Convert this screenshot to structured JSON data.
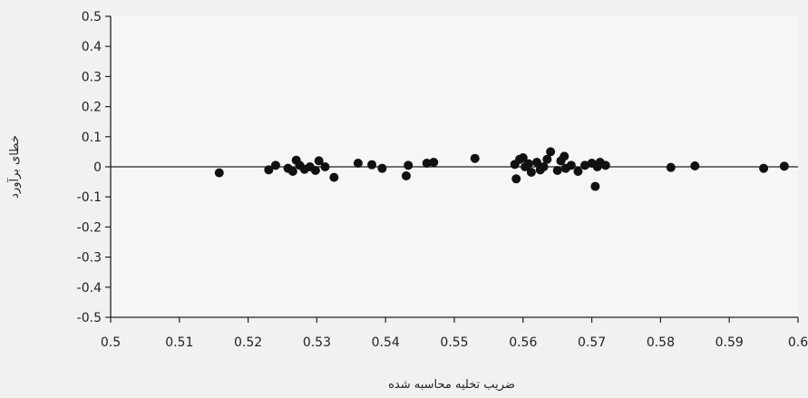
{
  "chart_data": {
    "type": "scatter",
    "title": "",
    "xlabel": "ضریب تخلیه محاسبه شده",
    "ylabel": "خطای برآورد",
    "xlim": [
      0.5,
      0.6
    ],
    "ylim": [
      -0.5,
      0.5
    ],
    "x_ticks": [
      0.5,
      0.51,
      0.52,
      0.53,
      0.54,
      0.55,
      0.56,
      0.57,
      0.58,
      0.59,
      0.6
    ],
    "x_tick_labels": [
      "0.5",
      "0.51",
      "0.52",
      "0.53",
      "0.54",
      "0.55",
      "0.56",
      "0.57",
      "0.58",
      "0.59",
      "0.6"
    ],
    "y_ticks": [
      0.5,
      0.4,
      0.3,
      0.2,
      0.1,
      0,
      -0.1,
      -0.2,
      -0.3,
      -0.4,
      -0.5
    ],
    "y_tick_labels": [
      "0.5",
      "0.4",
      "0.3",
      "0.2",
      "0.1",
      "0",
      "-0.1",
      "-0.2",
      "-0.3",
      "-0.4",
      "-0.5"
    ],
    "zero_line": true,
    "grid": false,
    "marker_color": "#111111",
    "points": [
      {
        "x": 0.5158,
        "y": -0.02
      },
      {
        "x": 0.523,
        "y": -0.01
      },
      {
        "x": 0.524,
        "y": 0.005
      },
      {
        "x": 0.5258,
        "y": -0.005
      },
      {
        "x": 0.5265,
        "y": -0.015
      },
      {
        "x": 0.527,
        "y": 0.022
      },
      {
        "x": 0.5275,
        "y": 0.005
      },
      {
        "x": 0.5282,
        "y": -0.008
      },
      {
        "x": 0.529,
        "y": 0.0
      },
      {
        "x": 0.5298,
        "y": -0.012
      },
      {
        "x": 0.5303,
        "y": 0.02
      },
      {
        "x": 0.5312,
        "y": 0.0
      },
      {
        "x": 0.5325,
        "y": -0.035
      },
      {
        "x": 0.536,
        "y": 0.012
      },
      {
        "x": 0.538,
        "y": 0.007
      },
      {
        "x": 0.5395,
        "y": -0.005
      },
      {
        "x": 0.543,
        "y": -0.03
      },
      {
        "x": 0.5433,
        "y": 0.005
      },
      {
        "x": 0.546,
        "y": 0.012
      },
      {
        "x": 0.547,
        "y": 0.015
      },
      {
        "x": 0.553,
        "y": 0.028
      },
      {
        "x": 0.559,
        "y": -0.04
      },
      {
        "x": 0.5588,
        "y": 0.008
      },
      {
        "x": 0.5595,
        "y": 0.025
      },
      {
        "x": 0.56,
        "y": 0.03
      },
      {
        "x": 0.5603,
        "y": 0.0
      },
      {
        "x": 0.5608,
        "y": 0.01
      },
      {
        "x": 0.5612,
        "y": -0.018
      },
      {
        "x": 0.562,
        "y": 0.015
      },
      {
        "x": 0.5625,
        "y": -0.01
      },
      {
        "x": 0.563,
        "y": 0.0
      },
      {
        "x": 0.5635,
        "y": 0.025
      },
      {
        "x": 0.564,
        "y": 0.05
      },
      {
        "x": 0.565,
        "y": -0.012
      },
      {
        "x": 0.5655,
        "y": 0.02
      },
      {
        "x": 0.566,
        "y": 0.035
      },
      {
        "x": 0.5662,
        "y": -0.005
      },
      {
        "x": 0.567,
        "y": 0.005
      },
      {
        "x": 0.568,
        "y": -0.015
      },
      {
        "x": 0.569,
        "y": 0.005
      },
      {
        "x": 0.57,
        "y": 0.012
      },
      {
        "x": 0.5705,
        "y": -0.065
      },
      {
        "x": 0.5708,
        "y": 0.0
      },
      {
        "x": 0.5712,
        "y": 0.015
      },
      {
        "x": 0.572,
        "y": 0.005
      },
      {
        "x": 0.5815,
        "y": -0.002
      },
      {
        "x": 0.585,
        "y": 0.003
      },
      {
        "x": 0.595,
        "y": -0.005
      },
      {
        "x": 0.598,
        "y": 0.002
      }
    ]
  }
}
